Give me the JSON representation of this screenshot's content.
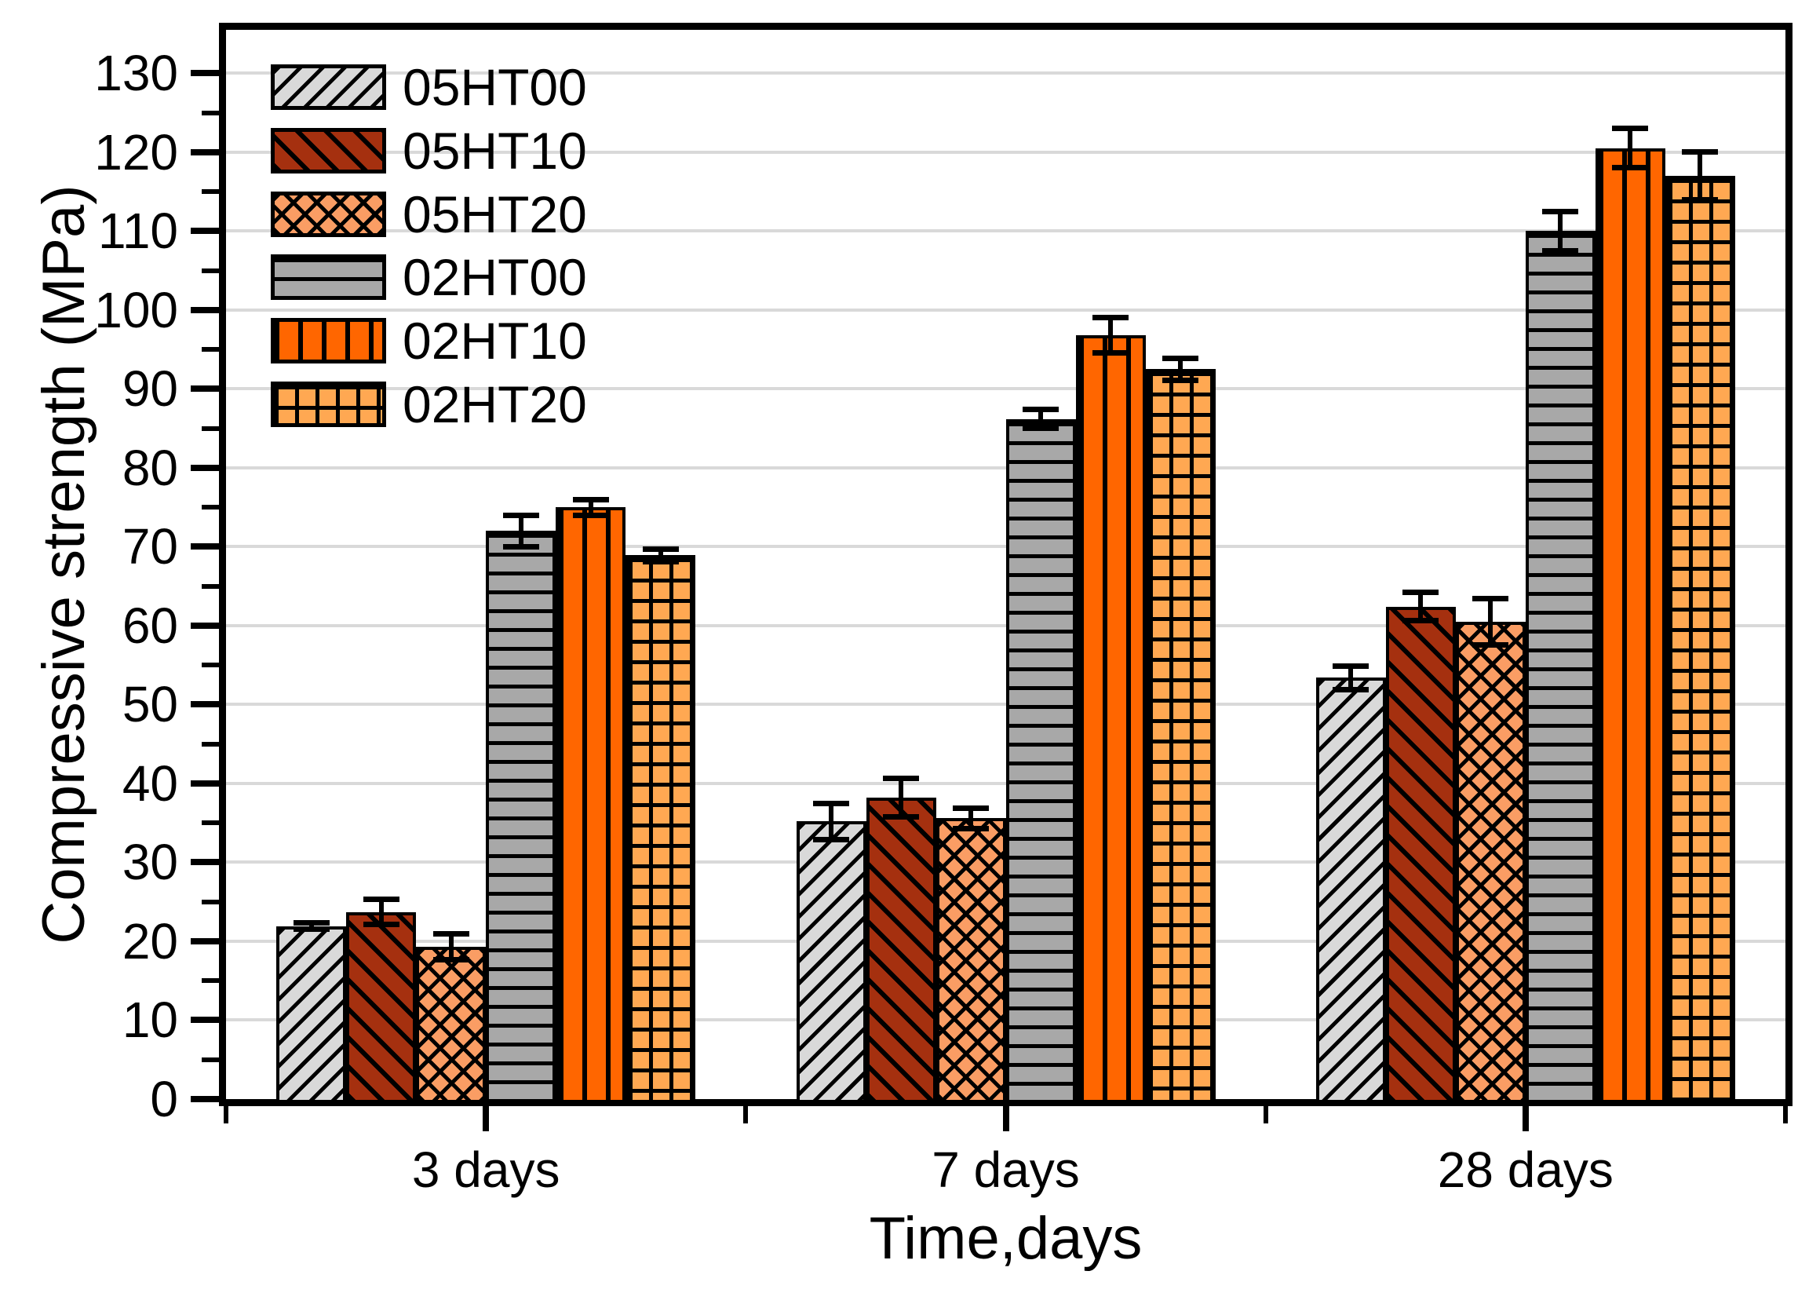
{
  "chart_data": {
    "type": "bar",
    "title": "",
    "xlabel": "Time,days",
    "ylabel": "Compressive strength (MPa)",
    "categories": [
      "3 days",
      "7 days",
      "28 days"
    ],
    "series": [
      {
        "name": "05HT00",
        "color": "#d9d9d9",
        "pattern": "diag-up",
        "values": [
          21.9,
          35.2,
          53.4
        ],
        "errors": [
          0.4,
          2.3,
          1.5
        ]
      },
      {
        "name": "05HT10",
        "color": "#a5300f",
        "pattern": "diag-down",
        "values": [
          23.7,
          38.2,
          62.4
        ],
        "errors": [
          1.6,
          2.4,
          1.8
        ]
      },
      {
        "name": "05HT20",
        "color": "#fa9d64",
        "pattern": "crosshatch",
        "values": [
          19.3,
          35.6,
          60.5
        ],
        "errors": [
          1.6,
          1.3,
          2.9
        ]
      },
      {
        "name": "02HT00",
        "color": "#a8a8a8",
        "pattern": "horizontal",
        "values": [
          72.0,
          86.2,
          110.0
        ],
        "errors": [
          2.0,
          1.2,
          2.5
        ]
      },
      {
        "name": "02HT10",
        "color": "#ff6600",
        "pattern": "vertical",
        "values": [
          75.0,
          96.8,
          120.5
        ],
        "errors": [
          1.0,
          2.2,
          2.5
        ]
      },
      {
        "name": "02HT20",
        "color": "#ffa852",
        "pattern": "grid",
        "values": [
          68.9,
          92.5,
          117.0
        ],
        "errors": [
          0.8,
          1.4,
          3.0
        ]
      }
    ],
    "ylim": [
      0,
      135.5
    ],
    "y_tick_step": 10,
    "y_tick_max": 130,
    "y_minor_step": 5,
    "grid": true,
    "gridline_color": "#d9d9d9",
    "legend_position": "top-left",
    "axis_color": "#000000",
    "background_color": "#ffffff"
  }
}
